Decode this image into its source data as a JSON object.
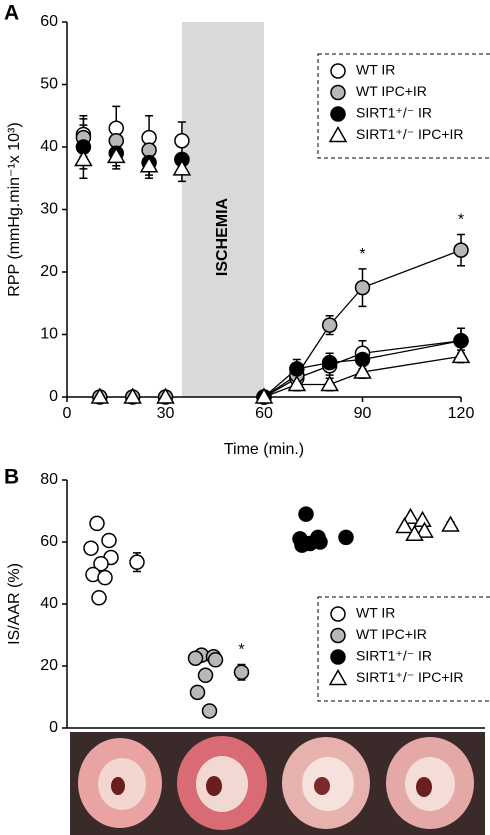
{
  "chart_data": [
    {
      "type": "line",
      "panel": "A",
      "xlabel": "Time (min.)",
      "ylabel": "RPP (mmHg.min⁻¹x 10³)",
      "xlim": [
        0,
        120
      ],
      "xticks": [
        0,
        30,
        60,
        90,
        120
      ],
      "ylim": [
        0,
        60
      ],
      "yticks": [
        0,
        10,
        20,
        30,
        40,
        50,
        60
      ],
      "shaded_region": {
        "label": "ISCHEMIA",
        "x": [
          35,
          60
        ],
        "color": "#d9d9d9"
      },
      "legend": "upper right",
      "series": [
        {
          "name": "WT IR",
          "color": "#ffffff",
          "marker": "circle",
          "x": [
            5,
            15,
            25,
            35,
            60,
            70,
            80,
            90,
            120
          ],
          "values": [
            42,
            43,
            41.5,
            41,
            0,
            3,
            5,
            7,
            9
          ],
          "errors": [
            3,
            3.5,
            3.5,
            3,
            null,
            1,
            1.5,
            2,
            2
          ]
        },
        {
          "name": "WT IPC+IR",
          "color": "#b8b8b8",
          "marker": "circle",
          "x": [
            5,
            10,
            15,
            20,
            25,
            30,
            35,
            60,
            70,
            80,
            90,
            120
          ],
          "values": [
            41.5,
            0,
            41,
            0,
            39.5,
            0,
            38,
            0,
            3.5,
            11.5,
            17.5,
            23.5
          ],
          "errors": [
            3,
            null,
            2,
            null,
            2,
            null,
            1,
            null,
            1,
            1.5,
            3,
            2.5
          ],
          "significance": [
            null,
            null,
            null,
            null,
            null,
            null,
            null,
            null,
            null,
            null,
            "*",
            "*"
          ]
        },
        {
          "name": "SIRT1⁺/⁻ IR",
          "color": "#000000",
          "marker": "circle",
          "x": [
            5,
            15,
            25,
            35,
            60,
            70,
            80,
            90,
            120
          ],
          "values": [
            40,
            39,
            37.5,
            38,
            0,
            4.5,
            5.5,
            6,
            9
          ],
          "errors": [
            3.5,
            2,
            2,
            1,
            null,
            1.5,
            1.5,
            1.5,
            2
          ]
        },
        {
          "name": "SIRT1⁺/⁻ IPC+IR",
          "color": "#ffffff",
          "marker": "triangle",
          "x": [
            5,
            10,
            15,
            20,
            25,
            30,
            35,
            60,
            70,
            80,
            90,
            120
          ],
          "values": [
            38,
            0,
            38.5,
            0,
            37,
            0,
            36.5,
            0,
            2,
            2,
            4,
            6.5
          ],
          "errors": [
            3,
            null,
            2,
            null,
            2,
            null,
            2,
            null,
            1,
            1,
            1,
            1
          ]
        }
      ]
    },
    {
      "type": "strip",
      "panel": "B",
      "ylabel": "IS/AAR (%)",
      "ylim": [
        0,
        80
      ],
      "yticks": [
        0,
        20,
        40,
        60,
        80
      ],
      "legend": "lower right",
      "series": [
        {
          "name": "WT IR",
          "color": "#ffffff",
          "marker": "circle",
          "values": [
            66,
            60.5,
            58,
            55,
            53,
            49.5,
            48.5,
            42
          ],
          "mean": 53.5,
          "error": 3
        },
        {
          "name": "WT IPC+IR",
          "color": "#b8b8b8",
          "marker": "circle",
          "values": [
            23.5,
            23,
            22.5,
            22,
            17,
            11.5,
            5.5
          ],
          "mean": 18,
          "error": 2.5,
          "significance": "*"
        },
        {
          "name": "SIRT1⁺/⁻ IR",
          "color": "#000000",
          "marker": "circle",
          "values": [
            69,
            61.5,
            61,
            60,
            59.5,
            59
          ],
          "mean": 61.5,
          "error": 1
        },
        {
          "name": "SIRT1⁺/⁻ IPC+IR",
          "color": "#ffffff",
          "marker": "triangle",
          "values": [
            68,
            67,
            65,
            63.5,
            62.5
          ],
          "mean": 65.5,
          "error": 1
        }
      ]
    }
  ]
}
